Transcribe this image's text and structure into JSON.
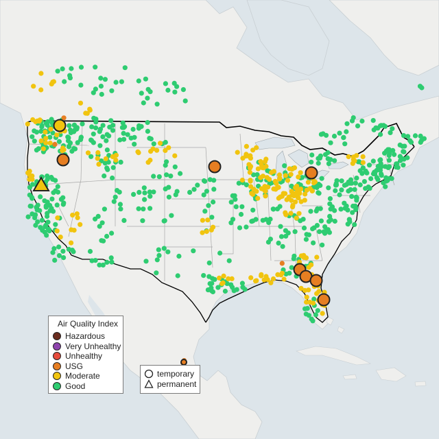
{
  "map": {
    "subject": "Air Quality Index monitor map of the contiguous United States",
    "colors": {
      "water": "#dde5ea",
      "land": "#efefed",
      "states": "#a8a8a8",
      "border": "#000000",
      "good": "#2ecc71",
      "moderate": "#f1c40f",
      "usg": "#e67e22",
      "unhealthy": "#e74c3c",
      "very_unhealthy": "#8e44ad",
      "hazardous": "#6b2d1f"
    },
    "highlighted_monitors": [
      {
        "type": "temporary",
        "category": "Moderate",
        "location": "north Idaho"
      },
      {
        "type": "temporary",
        "category": "USG",
        "location": "Oregon / Idaho border"
      },
      {
        "type": "permanent",
        "category": "Moderate",
        "location": "northern California / Nevada"
      },
      {
        "type": "temporary",
        "category": "USG",
        "location": "South Dakota / Minnesota"
      },
      {
        "type": "temporary",
        "category": "USG",
        "location": "Michigan / Ohio"
      },
      {
        "type": "temporary",
        "category": "USG",
        "location": "southern Georgia"
      },
      {
        "type": "temporary",
        "category": "USG",
        "location": "southern Georgia"
      },
      {
        "type": "temporary",
        "category": "USG",
        "location": "northeast Florida"
      },
      {
        "type": "temporary",
        "category": "USG",
        "location": "central Florida"
      },
      {
        "type": "temporary",
        "category": "USG",
        "location": "southern Mexico"
      }
    ]
  },
  "legend": {
    "title": "Air Quality Index",
    "items": [
      {
        "label": "Hazardous",
        "color": "#6b2d1f"
      },
      {
        "label": "Very Unhealthy",
        "color": "#8e44ad"
      },
      {
        "label": "Unhealthy",
        "color": "#e74c3c"
      },
      {
        "label": "USG",
        "color": "#e67e22"
      },
      {
        "label": "Moderate",
        "color": "#f1c40f"
      },
      {
        "label": "Good",
        "color": "#2ecc71"
      }
    ]
  },
  "shape_legend": {
    "items": [
      {
        "label": "temporary",
        "shape": "circle-icon"
      },
      {
        "label": "permanent",
        "shape": "triangle-icon"
      }
    ]
  }
}
